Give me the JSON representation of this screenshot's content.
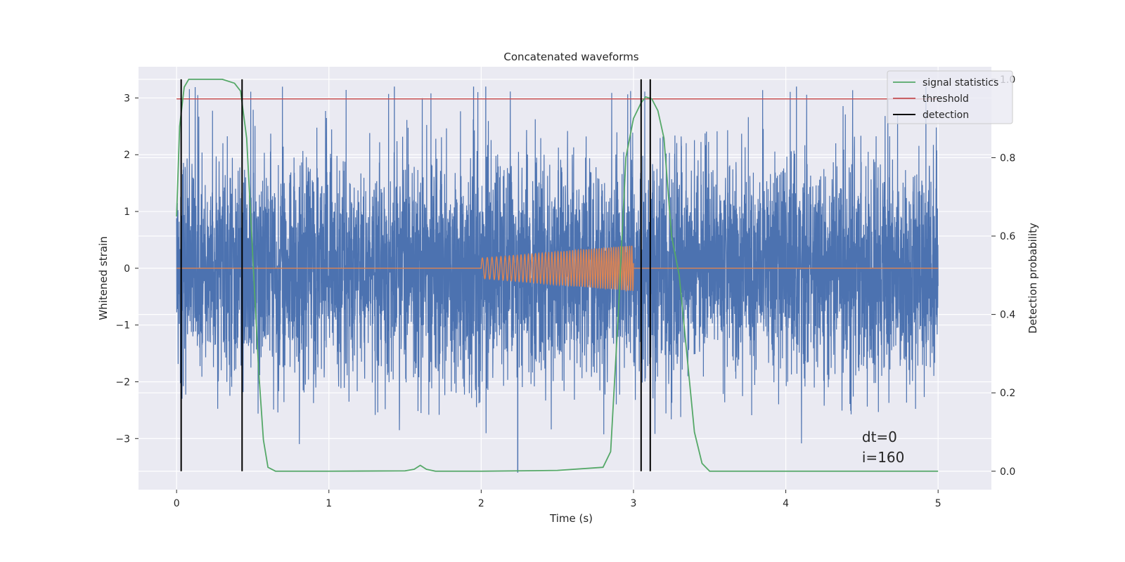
{
  "chart_data": {
    "type": "line",
    "title": "Concatenated waveforms",
    "xlabel": "Time (s)",
    "ylabel_left": "Whitened strain",
    "ylabel_right": "Detection probability",
    "xlim": [
      -0.25,
      5.35
    ],
    "ylim_left": [
      -3.9,
      3.55
    ],
    "ylim_right": [
      -0.047,
      1.032
    ],
    "x_ticks": [
      0,
      1,
      2,
      3,
      4,
      5
    ],
    "y_left_ticks": [
      -3,
      -2,
      -1,
      0,
      1,
      2,
      3
    ],
    "y_left_tick_labels": [
      "−3",
      "−2",
      "−1",
      "0",
      "1",
      "2",
      "3"
    ],
    "y_right_ticks": [
      0.0,
      0.2,
      0.4,
      0.6,
      0.8,
      1.0
    ],
    "y_right_tick_labels": [
      "0.0",
      "0.2",
      "0.4",
      "0.6",
      "0.8",
      "1.0"
    ],
    "grid": true,
    "legend_position": "top-right",
    "series": [
      {
        "name": "",
        "axis": "left",
        "color": "#4c72b0",
        "kind": "noise",
        "x_range": [
          0,
          5
        ],
        "typical_envelope": [
          -2.6,
          3.2
        ],
        "min_value": -3.6,
        "max_value": 3.2
      },
      {
        "name": "",
        "axis": "left",
        "color": "#dd8452",
        "kind": "chirp",
        "baseline": 0,
        "chirp_x_range": [
          2.0,
          3.0
        ],
        "amplitude_start": 0.18,
        "amplitude_end": 0.4
      },
      {
        "name": "signal statistics",
        "axis": "right",
        "color": "#55a868",
        "x": [
          0.0,
          0.02,
          0.05,
          0.08,
          0.12,
          0.2,
          0.3,
          0.38,
          0.42,
          0.46,
          0.5,
          0.54,
          0.57,
          0.6,
          0.65,
          1.0,
          1.5,
          1.56,
          1.6,
          1.64,
          1.7,
          2.0,
          2.5,
          2.8,
          2.85,
          2.9,
          2.95,
          3.0,
          3.05,
          3.08,
          3.12,
          3.16,
          3.2,
          3.25,
          3.3,
          3.35,
          3.4,
          3.45,
          3.5,
          4.0,
          5.0
        ],
        "values": [
          0.65,
          0.88,
          0.98,
          1.0,
          1.0,
          1.0,
          1.0,
          0.99,
          0.97,
          0.85,
          0.55,
          0.25,
          0.08,
          0.01,
          0.0,
          0.0,
          0.001,
          0.005,
          0.015,
          0.005,
          0.0,
          0.0,
          0.002,
          0.01,
          0.05,
          0.4,
          0.8,
          0.9,
          0.94,
          0.955,
          0.95,
          0.92,
          0.85,
          0.6,
          0.5,
          0.3,
          0.1,
          0.02,
          0.0,
          0.0,
          0.0
        ]
      },
      {
        "name": "threshold",
        "axis": "right",
        "color": "#c44e52",
        "x": [
          0,
          5
        ],
        "values": [
          0.95,
          0.95
        ]
      }
    ],
    "detections": {
      "name": "detection",
      "color": "#000000",
      "x": [
        0.03,
        0.43,
        3.05,
        3.11
      ]
    },
    "annotations": [
      "dt=0",
      "i=160"
    ]
  }
}
